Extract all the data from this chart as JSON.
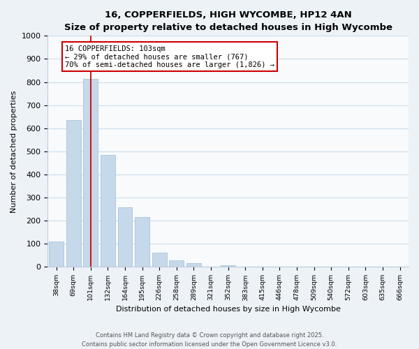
{
  "title": "16, COPPERFIELDS, HIGH WYCOMBE, HP12 4AN",
  "subtitle": "Size of property relative to detached houses in High Wycombe",
  "xlabel": "Distribution of detached houses by size in High Wycombe",
  "ylabel": "Number of detached properties",
  "bar_labels": [
    "38sqm",
    "69sqm",
    "101sqm",
    "132sqm",
    "164sqm",
    "195sqm",
    "226sqm",
    "258sqm",
    "289sqm",
    "321sqm",
    "352sqm",
    "383sqm",
    "415sqm",
    "446sqm",
    "478sqm",
    "509sqm",
    "540sqm",
    "572sqm",
    "603sqm",
    "635sqm",
    "666sqm"
  ],
  "bar_values": [
    110,
    635,
    815,
    485,
    258,
    215,
    62,
    28,
    15,
    0,
    8,
    0,
    0,
    0,
    0,
    0,
    0,
    0,
    0,
    0,
    0
  ],
  "bar_color": "#c5d9ea",
  "bar_edge_color": "#aac4d8",
  "vline_x_idx": 2,
  "vline_color": "#cc0000",
  "ann_line1": "16 COPPERFIELDS: 103sqm",
  "ann_line2": "← 29% of detached houses are smaller (767)",
  "ann_line3": "70% of semi-detached houses are larger (1,826) →",
  "annotation_box_color": "#ffffff",
  "annotation_box_edge": "#cc0000",
  "ylim": [
    0,
    1000
  ],
  "yticks": [
    0,
    100,
    200,
    300,
    400,
    500,
    600,
    700,
    800,
    900,
    1000
  ],
  "footer_line1": "Contains HM Land Registry data © Crown copyright and database right 2025.",
  "footer_line2": "Contains public sector information licensed under the Open Government Licence v3.0.",
  "bg_color": "#edf2f7",
  "plot_bg_color": "#f8fafc",
  "grid_color": "#ccdce8"
}
